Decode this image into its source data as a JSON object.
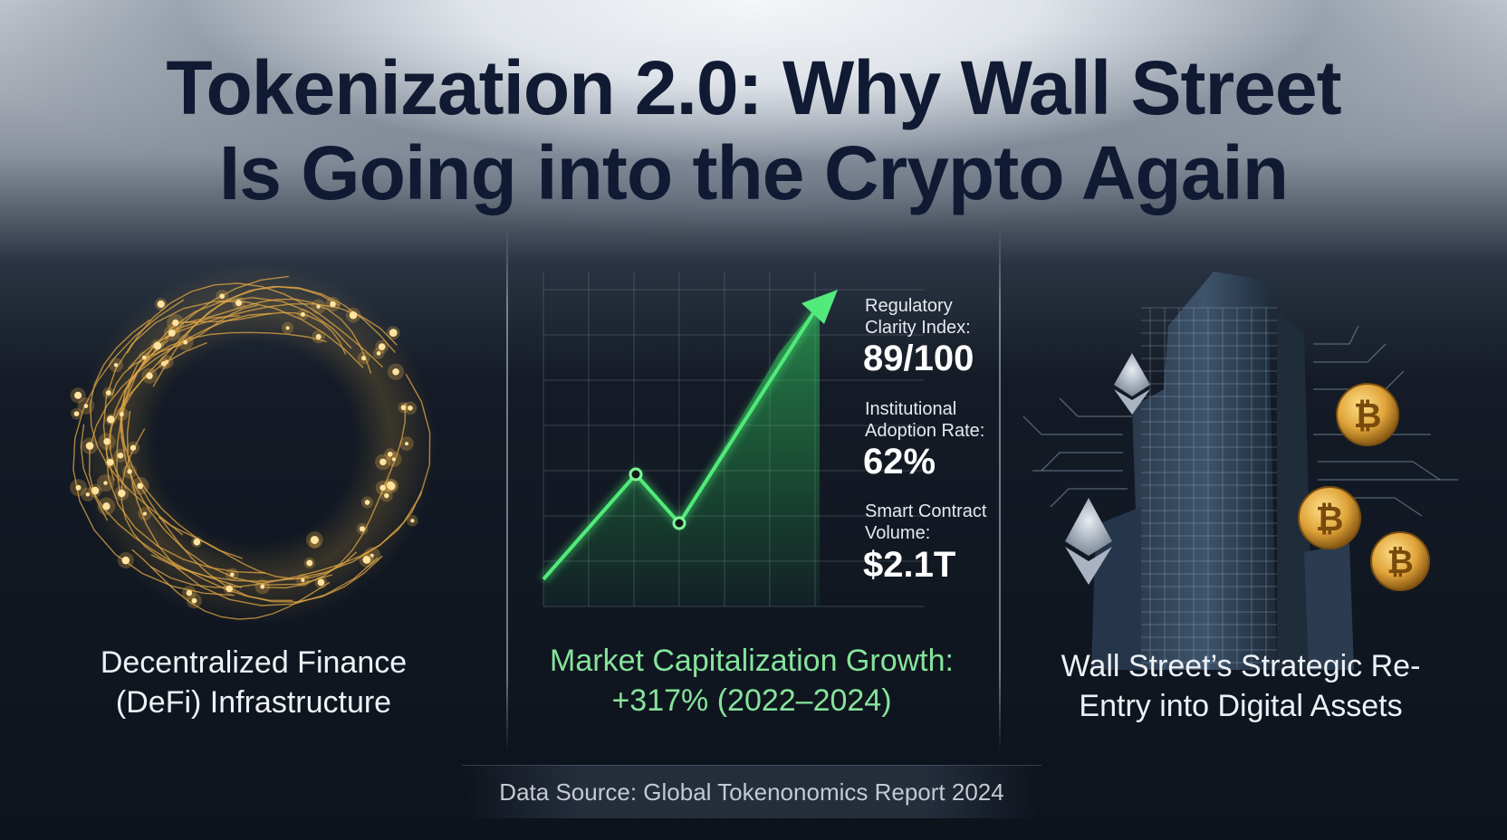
{
  "title": {
    "line1": "Tokenization 2.0: Why Wall Street",
    "line2": "Is Going into the Crypto Again"
  },
  "left_panel": {
    "caption_line1": "Decentralized Finance",
    "caption_line2": "(DeFi) Infrastructure",
    "icon": "glowing-network-ring-icon"
  },
  "center_panel": {
    "caption_line1": "Market Capitalization Growth:",
    "caption_line2": "+317% (2022–2024)",
    "icon": "rising-arrow-chart-icon",
    "stats": [
      {
        "label_line1": "Regulatory",
        "label_line2": "Clarity Index:",
        "value": "89/100"
      },
      {
        "label_line1": "Institutional",
        "label_line2": "Adoption Rate:",
        "value": "62%"
      },
      {
        "label_line1": "Smart Contract",
        "label_line2": "Volume:",
        "value": "$2.1T"
      }
    ]
  },
  "right_panel": {
    "caption_line1": "Wall Street’s Strategic Re-",
    "caption_line2": "Entry into Digital Assets",
    "icon": "skyscraper-with-crypto-coins-icon",
    "coin_glyph": "₿"
  },
  "source": "Data Source: Global Tokenonomics Report 2024",
  "colors": {
    "title": "#111a33",
    "accent_green": "#3ddc6a",
    "gold": "#f2b84b"
  }
}
